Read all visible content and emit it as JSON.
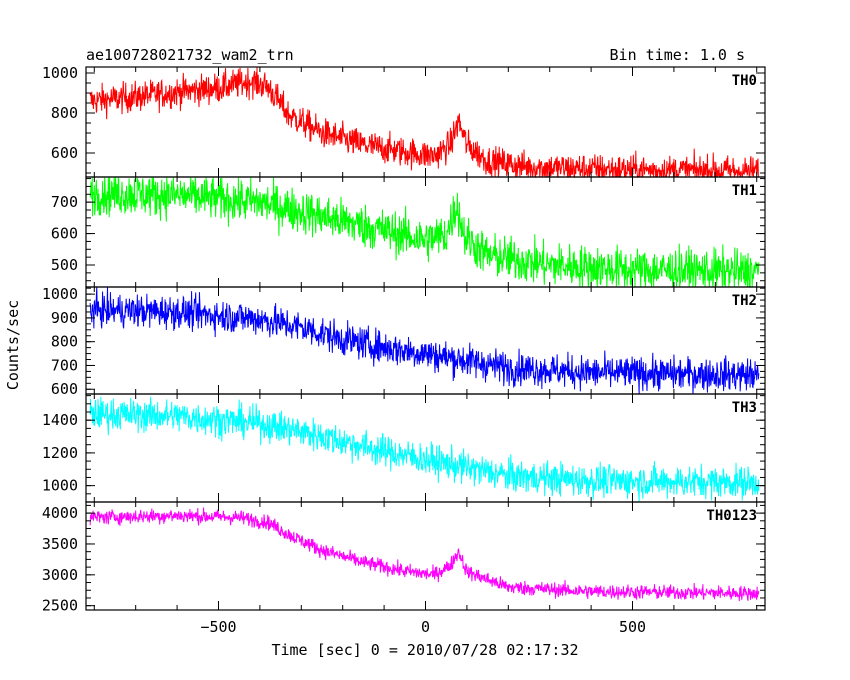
{
  "chart_data": {
    "type": "line",
    "title": "ae100728021732_wam2_trn",
    "bin_time_label": "Bin time: 1.0 s",
    "xlabel": "Time [sec] 0 = 2010/07/28 02:17:32",
    "ylabel": "Counts/sec",
    "xlim": [
      -820,
      820
    ],
    "x_ticks": [
      -500,
      0,
      500
    ],
    "x_tick_labels": [
      "−500",
      "0",
      "500"
    ],
    "grid": false,
    "panels": [
      {
        "name": "TH0",
        "color": "#ff0000",
        "ylim": [
          480,
          1030
        ],
        "y_ticks": [
          600,
          800,
          1000
        ],
        "y_tick_labels": [
          "600",
          "800",
          "1000"
        ],
        "trend": [
          [
            -810,
            860
          ],
          [
            -700,
            880
          ],
          [
            -600,
            905
          ],
          [
            -500,
            925
          ],
          [
            -420,
            960
          ],
          [
            -380,
            930
          ],
          [
            -330,
            790
          ],
          [
            -250,
            700
          ],
          [
            -150,
            640
          ],
          [
            -50,
            605
          ],
          [
            20,
            585
          ],
          [
            60,
            640
          ],
          [
            80,
            760
          ],
          [
            100,
            640
          ],
          [
            150,
            560
          ],
          [
            250,
            530
          ],
          [
            500,
            515
          ],
          [
            805,
            510
          ]
        ],
        "noise": 38
      },
      {
        "name": "TH1",
        "color": "#00ff00",
        "ylim": [
          430,
          780
        ],
        "y_ticks": [
          500,
          600,
          700
        ],
        "y_tick_labels": [
          "500",
          "600",
          "700"
        ],
        "trend": [
          [
            -810,
            730
          ],
          [
            -600,
            722
          ],
          [
            -400,
            700
          ],
          [
            -300,
            670
          ],
          [
            -200,
            640
          ],
          [
            -100,
            610
          ],
          [
            0,
            580
          ],
          [
            50,
            595
          ],
          [
            75,
            690
          ],
          [
            95,
            590
          ],
          [
            150,
            530
          ],
          [
            300,
            500
          ],
          [
            500,
            485
          ],
          [
            805,
            478
          ]
        ],
        "noise": 35
      },
      {
        "name": "TH2",
        "color": "#0000ff",
        "ylim": [
          580,
          1030
        ],
        "y_ticks": [
          600,
          700,
          800,
          900,
          1000
        ],
        "y_tick_labels": [
          "600",
          "700",
          "800",
          "900",
          "1000"
        ],
        "trend": [
          [
            -810,
            935
          ],
          [
            -600,
            925
          ],
          [
            -400,
            895
          ],
          [
            -300,
            860
          ],
          [
            -200,
            810
          ],
          [
            -100,
            775
          ],
          [
            0,
            750
          ],
          [
            100,
            720
          ],
          [
            200,
            690
          ],
          [
            400,
            670
          ],
          [
            805,
            660
          ]
        ],
        "noise": 35
      },
      {
        "name": "TH3",
        "color": "#00ffff",
        "ylim": [
          900,
          1560
        ],
        "y_ticks": [
          1000,
          1200,
          1400
        ],
        "y_tick_labels": [
          "1000",
          "1200",
          "1400"
        ],
        "trend": [
          [
            -810,
            1440
          ],
          [
            -600,
            1425
          ],
          [
            -400,
            1380
          ],
          [
            -300,
            1330
          ],
          [
            -200,
            1270
          ],
          [
            -100,
            1210
          ],
          [
            0,
            1160
          ],
          [
            100,
            1110
          ],
          [
            200,
            1060
          ],
          [
            400,
            1030
          ],
          [
            805,
            1020
          ]
        ],
        "noise": 50
      },
      {
        "name": "TH0123",
        "color": "#ff00ff",
        "ylim": [
          2430,
          4180
        ],
        "y_ticks": [
          2500,
          3000,
          3500,
          4000
        ],
        "y_tick_labels": [
          "2500",
          "3000",
          "3500",
          "4000"
        ],
        "trend": [
          [
            -810,
            3930
          ],
          [
            -600,
            3960
          ],
          [
            -450,
            3930
          ],
          [
            -380,
            3850
          ],
          [
            -330,
            3650
          ],
          [
            -250,
            3400
          ],
          [
            -150,
            3200
          ],
          [
            -50,
            3060
          ],
          [
            20,
            3000
          ],
          [
            60,
            3150
          ],
          [
            80,
            3380
          ],
          [
            100,
            3050
          ],
          [
            200,
            2800
          ],
          [
            400,
            2730
          ],
          [
            805,
            2700
          ]
        ],
        "noise": 60
      }
    ]
  }
}
